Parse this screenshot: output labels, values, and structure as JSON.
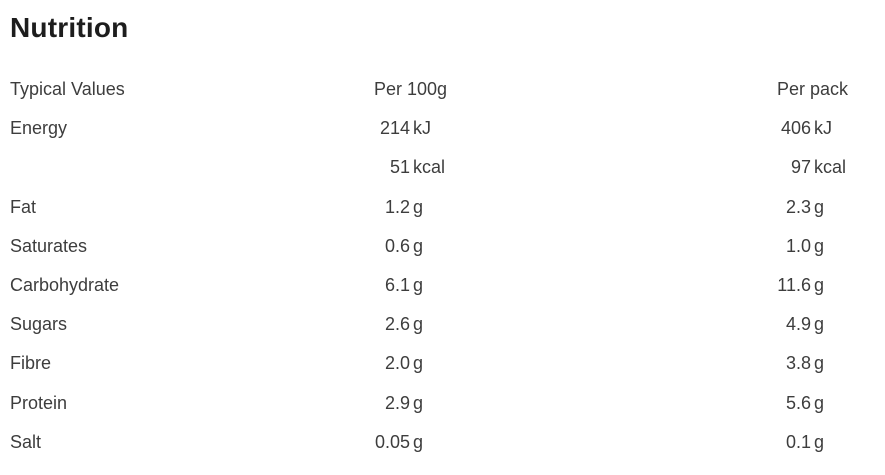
{
  "page": {
    "title": "Nutrition"
  },
  "colors": {
    "background": "#ffffff",
    "heading_text": "#1d1d1d",
    "body_text": "#3d3d3d"
  },
  "table": {
    "header": {
      "label": "Typical Values",
      "col_per_100g": "Per 100g",
      "col_per_pack": "Per pack"
    },
    "rows": [
      {
        "label": "Energy",
        "per100_num": "214",
        "per100_unit": "kJ",
        "perpack_num": "406",
        "perpack_unit": "kJ"
      },
      {
        "label": "",
        "per100_num": "51",
        "per100_unit": "kcal",
        "perpack_num": "97",
        "perpack_unit": "kcal"
      },
      {
        "label": "Fat",
        "per100_num": "1.2",
        "per100_unit": "g",
        "perpack_num": "2.3",
        "perpack_unit": "g"
      },
      {
        "label": "Saturates",
        "per100_num": "0.6",
        "per100_unit": "g",
        "perpack_num": "1.0",
        "perpack_unit": "g"
      },
      {
        "label": "Carbohydrate",
        "per100_num": "6.1",
        "per100_unit": "g",
        "perpack_num": "11.6",
        "perpack_unit": "g"
      },
      {
        "label": "Sugars",
        "per100_num": "2.6",
        "per100_unit": "g",
        "perpack_num": "4.9",
        "perpack_unit": "g"
      },
      {
        "label": "Fibre",
        "per100_num": "2.0",
        "per100_unit": "g",
        "perpack_num": "3.8",
        "perpack_unit": "g"
      },
      {
        "label": "Protein",
        "per100_num": "2.9",
        "per100_unit": "g",
        "perpack_num": "5.6",
        "perpack_unit": "g"
      },
      {
        "label": "Salt",
        "per100_num": "0.05",
        "per100_unit": "g",
        "perpack_num": "0.1",
        "perpack_unit": "g"
      }
    ]
  }
}
